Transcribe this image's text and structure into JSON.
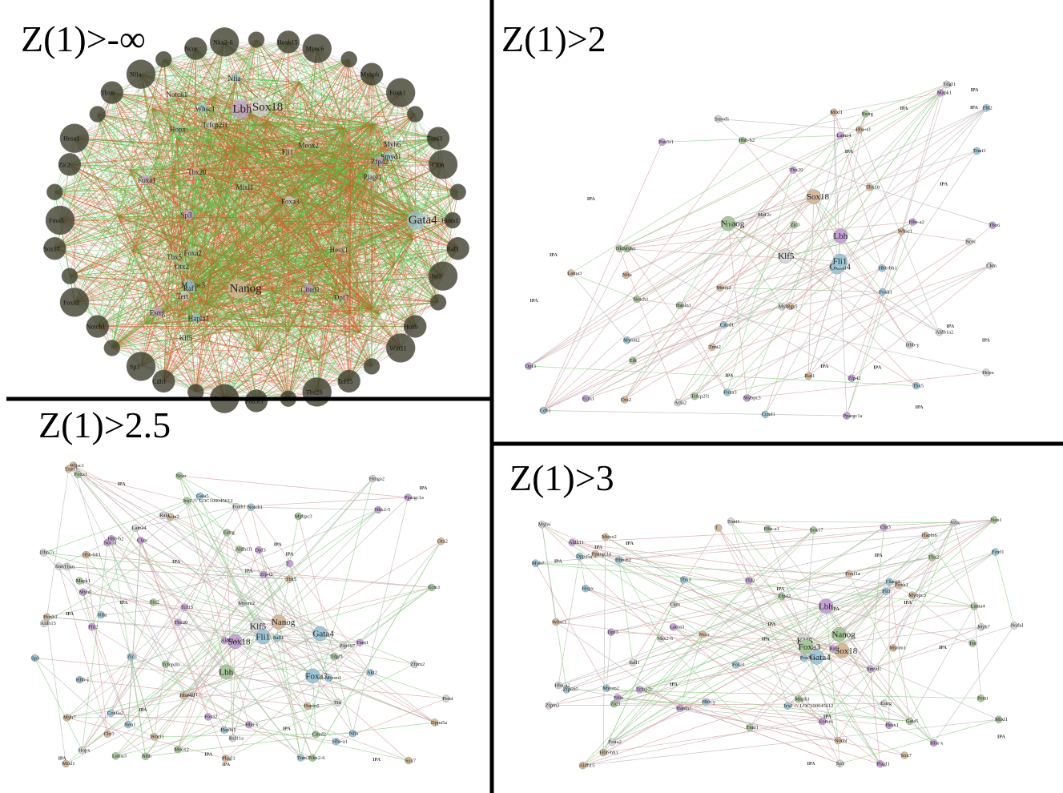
{
  "panels": [
    {
      "id": "z-neg-inf",
      "title": "Z(1)>-∞",
      "dense": true,
      "hubs": [
        "Gata4",
        "Nanog",
        "Lbh",
        "Klf5",
        "Sox18",
        "Whsc1",
        "Fli1",
        "Esrrg",
        "Mixl1",
        "Tcfcp2l1",
        "Smyd1",
        "Dpf3",
        "Zfp42",
        "Hopx",
        "Myh6",
        "Mybpc3",
        "Meox2",
        "Cited1",
        "Tbx5",
        "Plagl1",
        "Nfia",
        "Hesx1",
        "Foxa1",
        "Foxa2",
        "Foxa3",
        "Raf1",
        "Notch1",
        "Sp3",
        "Otx2",
        "Tert",
        "Hapln1",
        "Tbx20"
      ],
      "rim_labels": [
        "Hoxa1",
        "Raf1",
        "Isl1",
        "Hoxb",
        "Wnt11",
        "Tcf15",
        "Tbx20",
        "Pou5f1",
        "Otx2",
        "Cdh1",
        "Sp3",
        "Notch1",
        "Foxa2",
        "Sox17",
        "Fmo5",
        "Zic2",
        "Hesx1",
        "Tbx6",
        "Nfia",
        "Ncor",
        "Nkx2-6",
        "Hoxb15",
        "Myoc6",
        "Mybph",
        "Foxh1",
        "Tnni3",
        "Ckm"
      ]
    },
    {
      "id": "z-2",
      "title": "Z(1)>2",
      "hubs": [
        "Gata4",
        "Sox18",
        "Lbh",
        "Nanog",
        "Klf5",
        "Fli1",
        "Whsc1",
        "Zfp42",
        "Esrrg",
        "Hopx",
        "Foxa3",
        "Mixl1",
        "Dpf3",
        "Nkx2-6",
        "Smyd1",
        "Tbx5",
        "Meox2",
        "Tbx20"
      ],
      "others": [
        "Elk",
        "Aldh1a2",
        "Myom2",
        "Tnnt2",
        "Mybpc3",
        "Myh6",
        "Myh7",
        "Tnni3",
        "Lama3",
        "Lama4",
        "Hapln1",
        "Hbb-y",
        "Hbb-bh1",
        "Hba-a1",
        "Hba-a2",
        "Hbb-b2",
        "Acta2",
        "Ccnd1",
        "Raf1",
        "Mapk1",
        "Notch1",
        "Tdgf1",
        "Foxh1",
        "Otx2",
        "Pou5f1",
        "Zic3",
        "Ckm",
        "Cdh1",
        "Rgs5",
        "Ppargc1a",
        "Tcfcp2l1",
        "Mef2c",
        "Fhl2",
        "Tbx18",
        "Tbx6",
        "Tbx3",
        "Ncor",
        "Cited1",
        "Nfix",
        "Ecm1"
      ]
    },
    {
      "id": "z-2-5",
      "title": "Z(1)>2.5",
      "nodes": [
        "Gata4",
        "Nanog",
        "Sox18",
        "Lbh",
        "Klf5",
        "Fli1",
        "Whsc1",
        "Zfp42",
        "Esrrg",
        "Hopx",
        "Foxa3",
        "Mixl1",
        "Dpf3",
        "Nkx2-6",
        "Smyd1",
        "Gata5",
        "Tbx5",
        "Tbx20",
        "Meox2",
        "Zfp697",
        "Nfia",
        "Dppa5a",
        "Ppargc1a",
        "Tcfcp2l1",
        "Zfpm2",
        "Neo1",
        "Sox7",
        "Foxa2",
        "Foxa1",
        "Pou5f1",
        "Zic3",
        "Otx2",
        "T",
        "Tdgf1",
        "Foxh1",
        "Notch1",
        "Hoxb1",
        "Tcf15",
        "Zic2",
        "Tbx6",
        "Sp3",
        "Plagl1",
        "Nodal",
        "Ncor",
        "Pemt",
        "Nfix",
        "Cbr3",
        "Fhl2",
        "Ecm1",
        "Hmga2",
        "Sall1",
        "Acta2",
        "Aldh1a2",
        "Nfib",
        "Myom2",
        "Myom1",
        "Myh7",
        "Myh6",
        "Mybpc3",
        "Ttn",
        "Tnnt2",
        "Tnni3",
        "Tnni1",
        "Lama3",
        "Lama4",
        "Hba-a1",
        "Hba-a2",
        "Hbb-b2",
        "Aldh1l1",
        "Aldh15",
        "Hbb-y",
        "Hbb-bh1",
        "Hba-x",
        "Mapk1",
        "Raf1",
        "Hapln1",
        "Hapln6",
        "Ckm",
        "Cited2",
        "Dhrs7c",
        "Cox6a2",
        "Wnt11",
        "Nkx2-5",
        "Irx2 /// LOC100045612",
        "Bcl11a",
        "Akt2"
      ]
    },
    {
      "id": "z-3",
      "title": "Z(1)>3",
      "nodes": [
        "Gata4",
        "Sox18",
        "Lbh",
        "Nanog",
        "Klf5",
        "Fli1",
        "Whsc1",
        "Nfia",
        "Zfp42",
        "Esrrg",
        "Dppa5a",
        "Ppargc1a",
        "Smyd1",
        "Gata5",
        "Zfpm2",
        "Tbx5",
        "Sox7",
        "Dpf3",
        "Neo1",
        "Sp3",
        "Hopx",
        "Nodal",
        "Plagl1",
        "Foxa3",
        "Foxa2",
        "Foxa1",
        "Foxh1",
        "Hesx1",
        "Mixl1",
        "Nkx2-6",
        "Zfp697",
        "Meox2",
        "Fhl2",
        "Pemt",
        "Nfix",
        "Irx2 /// LOC100045612",
        "Ncor",
        "Cbr3",
        "Sox17",
        "Sall1",
        "Foxf1",
        "Foxf1a",
        "Eomes",
        "Zic3",
        "Nodal",
        "Pou5f1",
        "T",
        "Tcfap2c",
        "Ttn",
        "Myh6",
        "Myh7",
        "Mybpc3",
        "Lama3",
        "Lama4",
        "Myh7",
        "Myom2",
        "Myom1",
        "Raf1",
        "Mapk1",
        "Ckm",
        "Ckmt2",
        "Aldh15",
        "Aldh11",
        "Tnnt1",
        "Tnni1",
        "Hbb-y",
        "Hbb-bh1",
        "Hba-x",
        "Hba-a1",
        "Hba-a2",
        "Hbb-b2",
        "Hapln6",
        "Hapln7",
        "Tbx2"
      ]
    }
  ],
  "colors": {
    "edge_positive": "#3ec93e",
    "edge_negative": "#d8532a",
    "edge_light": "#b7b7b7",
    "edge_green_light": "#8fcf8a",
    "edge_red_light": "#d8a3a3",
    "node_blue": "#9ec6d6",
    "node_tan": "#d6b89a",
    "node_purple": "#c6a3d6",
    "node_green": "#a8c79a",
    "node_grey": "#d6d6d6",
    "node_dark": "#3f3f2e",
    "ipa_label": "IPA"
  }
}
